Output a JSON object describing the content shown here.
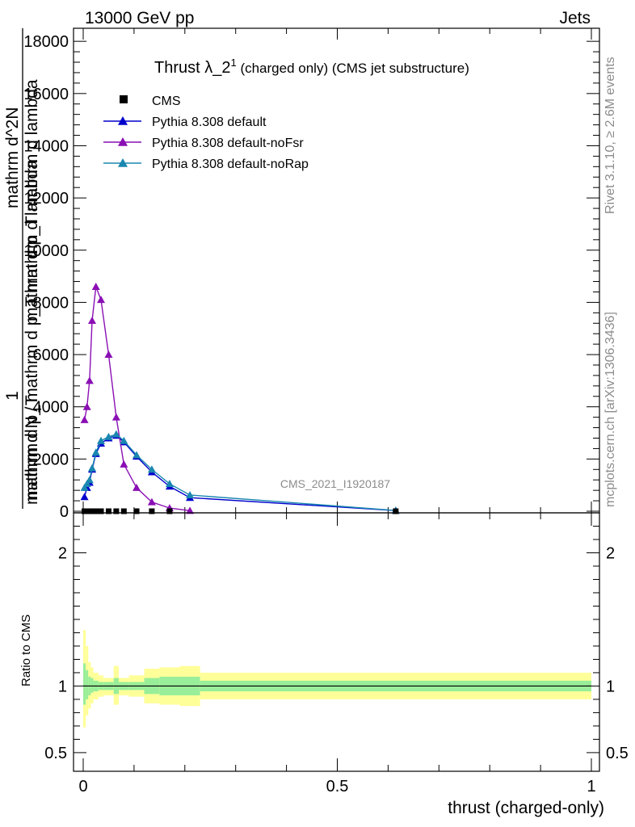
{
  "header": {
    "left": "13000 GeV pp",
    "right": "Jets"
  },
  "side_labels": {
    "rivet": "Rivet 3.1.10, ≥ 2.6M events",
    "mcplots": "mcplots.cern.ch [arXiv:1306.3436]"
  },
  "analysis_tag": "CMS_2021_I1920187",
  "chart_data": [
    {
      "type": "line",
      "title_main": "Thrust λ_2",
      "title_sup": "1",
      "title_rest": " (charged only) (CMS jet substructure)",
      "ylabel_numerator": "1",
      "ylabel_lines": [
        "mathrm d N / mathrm d p_T mathrm d lambda",
        "mathrm d^2N",
        "mathrm d p_T mathrm d lambda",
        "mathrm d p_T"
      ],
      "xlim": [
        0,
        1
      ],
      "ylim": [
        0,
        18500
      ],
      "yticks": [
        {
          "v": 0,
          "label": "0"
        },
        {
          "v": 2000,
          "label": "2000"
        },
        {
          "v": 4000,
          "label": "4000"
        },
        {
          "v": 6000,
          "label": "6000"
        },
        {
          "v": 8000,
          "label": "8000"
        },
        {
          "v": 10000,
          "label": "10000"
        },
        {
          "v": 12000,
          "label": "12000"
        },
        {
          "v": 14000,
          "label": "14000"
        },
        {
          "v": 16000,
          "label": "16000"
        },
        {
          "v": 18000,
          "label": "18000"
        }
      ],
      "legend": [
        {
          "label": "CMS",
          "color": "#000000",
          "marker": "square"
        },
        {
          "label": "Pythia 8.308 default",
          "color": "#0000cc",
          "marker": "triangle"
        },
        {
          "label": "Pythia 8.308 default-noFsr",
          "color": "#8a0fb4",
          "marker": "triangle"
        },
        {
          "label": "Pythia 8.308 default-noRap",
          "color": "#1a87b0",
          "marker": "triangle"
        }
      ],
      "data_points": {
        "name": "CMS",
        "color": "#000000",
        "x": [
          0.0025,
          0.0075,
          0.0125,
          0.0175,
          0.025,
          0.035,
          0.05,
          0.065,
          0.08,
          0.105,
          0.135,
          0.17,
          0.615
        ],
        "y": [
          0,
          0,
          0,
          0,
          0,
          0,
          0,
          0,
          0,
          0,
          0,
          0,
          0
        ]
      },
      "series": [
        {
          "name": "Pythia 8.308 default",
          "color": "#0000cc",
          "x": [
            0.0025,
            0.0075,
            0.0125,
            0.0175,
            0.025,
            0.035,
            0.05,
            0.065,
            0.08,
            0.105,
            0.135,
            0.17,
            0.21,
            0.615
          ],
          "y": [
            550,
            900,
            1100,
            1600,
            2200,
            2600,
            2800,
            2900,
            2650,
            2100,
            1500,
            950,
            520,
            25
          ]
        },
        {
          "name": "Pythia 8.308 default-noFsr",
          "color": "#8a0fb4",
          "x": [
            0.0025,
            0.0075,
            0.0125,
            0.0175,
            0.025,
            0.035,
            0.05,
            0.065,
            0.08,
            0.105,
            0.135,
            0.17,
            0.21
          ],
          "y": [
            3500,
            4000,
            5000,
            7300,
            8600,
            8100,
            6000,
            3600,
            1800,
            900,
            350,
            120,
            20
          ]
        },
        {
          "name": "Pythia 8.308 default-noRap",
          "color": "#1a87b0",
          "x": [
            0.0025,
            0.0075,
            0.0125,
            0.0175,
            0.025,
            0.035,
            0.05,
            0.065,
            0.08,
            0.105,
            0.135,
            0.17,
            0.21,
            0.615
          ],
          "y": [
            900,
            1050,
            1200,
            1650,
            2250,
            2700,
            2850,
            2950,
            2700,
            2150,
            1600,
            1050,
            620,
            30
          ]
        }
      ]
    },
    {
      "type": "area",
      "ylabel": "Ratio to CMS",
      "xlabel": "thrust (charged-only)",
      "xlim": [
        0,
        1
      ],
      "ylim": [
        0.36,
        2.3
      ],
      "xticks": [
        {
          "v": 0,
          "label": "0"
        },
        {
          "v": 0.5,
          "label": "0.5"
        },
        {
          "v": 1,
          "label": "1"
        }
      ],
      "yticks": [
        {
          "v": 0.5,
          "label": "0.5"
        },
        {
          "v": 1,
          "label": "1"
        },
        {
          "v": 2,
          "label": "2"
        }
      ],
      "reference_line": 1,
      "bands": {
        "bin_edges": [
          0,
          0.005,
          0.01,
          0.015,
          0.02,
          0.03,
          0.04,
          0.06,
          0.07,
          0.09,
          0.12,
          0.15,
          0.19,
          0.23,
          1.0
        ],
        "yellow_lo": [
          0.69,
          0.78,
          0.83,
          0.87,
          0.9,
          0.92,
          0.93,
          0.86,
          0.93,
          0.92,
          0.87,
          0.86,
          0.85,
          0.9
        ],
        "yellow_hi": [
          1.42,
          1.3,
          1.18,
          1.14,
          1.1,
          1.08,
          1.06,
          1.15,
          1.06,
          1.08,
          1.13,
          1.14,
          1.15,
          1.1
        ],
        "green_lo": [
          0.86,
          0.9,
          0.93,
          0.95,
          0.96,
          0.97,
          0.97,
          0.94,
          0.97,
          0.97,
          0.94,
          0.93,
          0.93,
          0.96
        ],
        "green_hi": [
          1.17,
          1.12,
          1.07,
          1.06,
          1.04,
          1.03,
          1.03,
          1.06,
          1.03,
          1.03,
          1.06,
          1.07,
          1.07,
          1.04
        ]
      },
      "band_colors": {
        "yellow": "#ffff99",
        "green": "#99ee99"
      }
    }
  ]
}
